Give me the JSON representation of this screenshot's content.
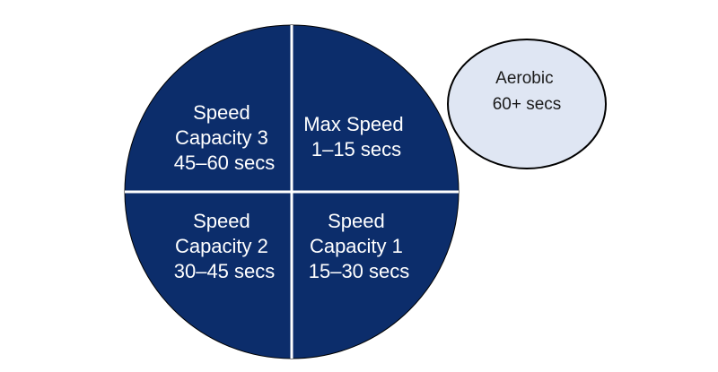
{
  "colors": {
    "circle_fill": "#0c2d6b",
    "divider": "#ffffff",
    "aux_fill": "#dfe6f3",
    "aux_stroke": "#000000",
    "quad_text": "#ffffff",
    "aux_text": "#1a1a1a"
  },
  "quadrants": [
    {
      "id": "top-left",
      "lines": [
        "Speed",
        "Capacity 3",
        "45–60 secs"
      ]
    },
    {
      "id": "top-right",
      "lines": [
        "Max Speed",
        "1–15 secs"
      ]
    },
    {
      "id": "bottom-left",
      "lines": [
        "Speed",
        "Capacity 2",
        "30–45 secs"
      ]
    },
    {
      "id": "bottom-right",
      "lines": [
        "Speed",
        "Capacity 1",
        "15–30 secs"
      ]
    }
  ],
  "aerobic": {
    "lines": [
      "Aerobic",
      "60+ secs"
    ]
  }
}
